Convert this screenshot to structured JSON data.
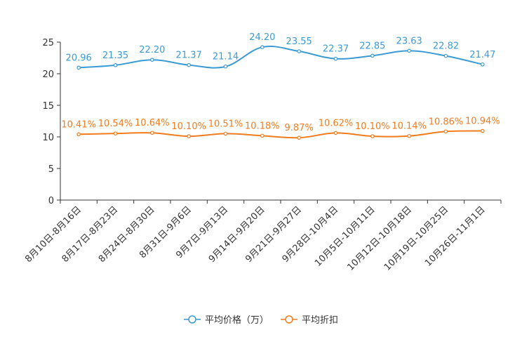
{
  "chart_data": {
    "type": "line",
    "title": "",
    "xlabel": "",
    "ylabel": "",
    "ylim": [
      0,
      25
    ],
    "yticks": [
      0,
      5,
      10,
      15,
      20,
      25
    ],
    "grid": false,
    "legend_position": "bottom-center",
    "categories": [
      "8月10日-8月16日",
      "8月17日-8月23日",
      "8月24日-8月30日",
      "8月31日-9月6日",
      "9月7日-9月13日",
      "9月14日-9月20日",
      "9月21日-9月27日",
      "9月28日-10月4日",
      "10月5日-10月11日",
      "10月12日-10月18日",
      "10月19日-10月25日",
      "10月26日-11月1日"
    ],
    "series": [
      {
        "name": "平均价格（万）",
        "color": "#3a9ad4",
        "values": [
          20.96,
          21.35,
          22.2,
          21.37,
          21.14,
          24.2,
          23.55,
          22.37,
          22.85,
          23.63,
          22.82,
          21.47
        ],
        "labels": [
          "20.96",
          "21.35",
          "22.20",
          "21.37",
          "21.14",
          "24.20",
          "23.55",
          "22.37",
          "22.85",
          "23.63",
          "22.82",
          "21.47"
        ]
      },
      {
        "name": "平均折扣",
        "color": "#f07c1e",
        "values": [
          10.41,
          10.54,
          10.64,
          10.1,
          10.51,
          10.18,
          9.87,
          10.62,
          10.1,
          10.14,
          10.86,
          10.94
        ],
        "labels": [
          "10.41%",
          "10.54%",
          "10.64%",
          "10.10%",
          "10.51%",
          "10.18%",
          "9.87%",
          "10.62%",
          "10.10%",
          "10.14%",
          "10.86%",
          "10.94%"
        ]
      }
    ]
  }
}
